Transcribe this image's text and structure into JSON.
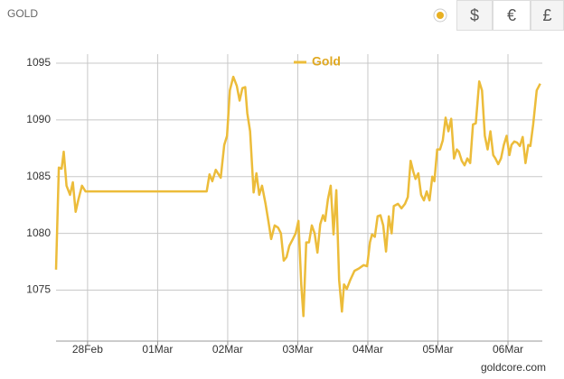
{
  "header": {
    "title": "GOLD",
    "currencies": [
      "$",
      "€",
      "£"
    ]
  },
  "chart_data": {
    "type": "line",
    "x": [
      -0.45,
      -0.41,
      -0.37,
      -0.34,
      -0.3,
      -0.25,
      -0.21,
      -0.17,
      -0.13,
      -0.08,
      -0.03,
      1.7,
      1.74,
      1.78,
      1.83,
      1.9,
      1.95,
      1.99,
      2.03,
      2.08,
      2.13,
      2.17,
      2.21,
      2.25,
      2.28,
      2.32,
      2.37,
      2.41,
      2.45,
      2.49,
      2.54,
      2.58,
      2.62,
      2.67,
      2.72,
      2.76,
      2.8,
      2.84,
      2.88,
      2.93,
      2.97,
      3.01,
      3.05,
      3.08,
      3.12,
      3.16,
      3.2,
      3.24,
      3.28,
      3.32,
      3.36,
      3.39,
      3.43,
      3.47,
      3.51,
      3.55,
      3.59,
      3.63,
      3.66,
      3.7,
      3.75,
      3.81,
      3.87,
      3.94,
      3.99,
      4.03,
      4.06,
      4.1,
      4.14,
      4.18,
      4.22,
      4.26,
      4.3,
      4.34,
      4.37,
      4.43,
      4.48,
      4.53,
      4.57,
      4.61,
      4.65,
      4.68,
      4.72,
      4.76,
      4.8,
      4.84,
      4.88,
      4.92,
      4.95,
      4.99,
      5.03,
      5.07,
      5.11,
      5.15,
      5.19,
      5.23,
      5.27,
      5.3,
      5.34,
      5.38,
      5.42,
      5.46,
      5.5,
      5.54,
      5.59,
      5.63,
      5.67,
      5.71,
      5.75,
      5.79,
      5.82,
      5.86,
      5.9,
      5.94,
      5.98,
      6.02,
      6.05,
      6.09,
      6.13,
      6.17,
      6.21,
      6.25,
      6.29,
      6.32,
      6.36,
      6.41,
      6.46
    ],
    "series": [
      {
        "name": "Gold",
        "color": "#ecbc3a",
        "values": [
          1076.8,
          1085.8,
          1085.7,
          1087.2,
          1084.2,
          1083.4,
          1084.5,
          1081.9,
          1083.0,
          1084.2,
          1083.7,
          1083.7,
          1085.2,
          1084.6,
          1085.6,
          1084.9,
          1087.8,
          1088.6,
          1092.6,
          1093.8,
          1093.0,
          1091.7,
          1092.8,
          1092.9,
          1090.6,
          1089.0,
          1083.6,
          1085.3,
          1083.4,
          1084.2,
          1082.6,
          1081.1,
          1079.5,
          1080.7,
          1080.5,
          1080.0,
          1077.6,
          1077.9,
          1078.9,
          1079.5,
          1080.0,
          1081.1,
          1075.5,
          1072.7,
          1079.2,
          1079.2,
          1080.7,
          1080.0,
          1078.3,
          1080.8,
          1081.6,
          1081.1,
          1083.0,
          1084.2,
          1079.9,
          1083.8,
          1075.9,
          1073.1,
          1075.5,
          1075.1,
          1075.9,
          1076.7,
          1076.9,
          1077.2,
          1077.1,
          1079.2,
          1079.9,
          1079.7,
          1081.5,
          1081.6,
          1080.7,
          1078.4,
          1081.5,
          1080.0,
          1082.4,
          1082.6,
          1082.2,
          1082.6,
          1083.2,
          1086.4,
          1085.4,
          1084.8,
          1085.3,
          1083.4,
          1082.9,
          1083.7,
          1082.9,
          1085.0,
          1084.6,
          1087.4,
          1087.4,
          1088.2,
          1090.2,
          1089.0,
          1090.1,
          1086.6,
          1087.4,
          1087.2,
          1086.4,
          1086.0,
          1086.6,
          1086.2,
          1089.6,
          1089.7,
          1093.4,
          1092.6,
          1088.6,
          1087.4,
          1089.0,
          1086.9,
          1086.6,
          1086.1,
          1086.6,
          1087.8,
          1088.6,
          1086.9,
          1087.8,
          1088.1,
          1088.0,
          1087.7,
          1088.5,
          1086.2,
          1087.8,
          1087.7,
          1089.6,
          1092.6,
          1093.2
        ]
      }
    ],
    "xlim": [
      -0.45,
      6.49
    ],
    "xticks": [
      {
        "value": 0,
        "label": "28Feb"
      },
      {
        "value": 1,
        "label": "01Mar"
      },
      {
        "value": 2,
        "label": "02Mar"
      },
      {
        "value": 3,
        "label": "03Mar"
      },
      {
        "value": 4,
        "label": "04Mar"
      },
      {
        "value": 5,
        "label": "05Mar"
      },
      {
        "value": 6,
        "label": "06Mar"
      }
    ],
    "ylim": [
      1070.5,
      1095.8
    ],
    "yticks": [
      1075,
      1080,
      1085,
      1090,
      1095
    ],
    "grid": true
  },
  "footer": "goldcore.com"
}
